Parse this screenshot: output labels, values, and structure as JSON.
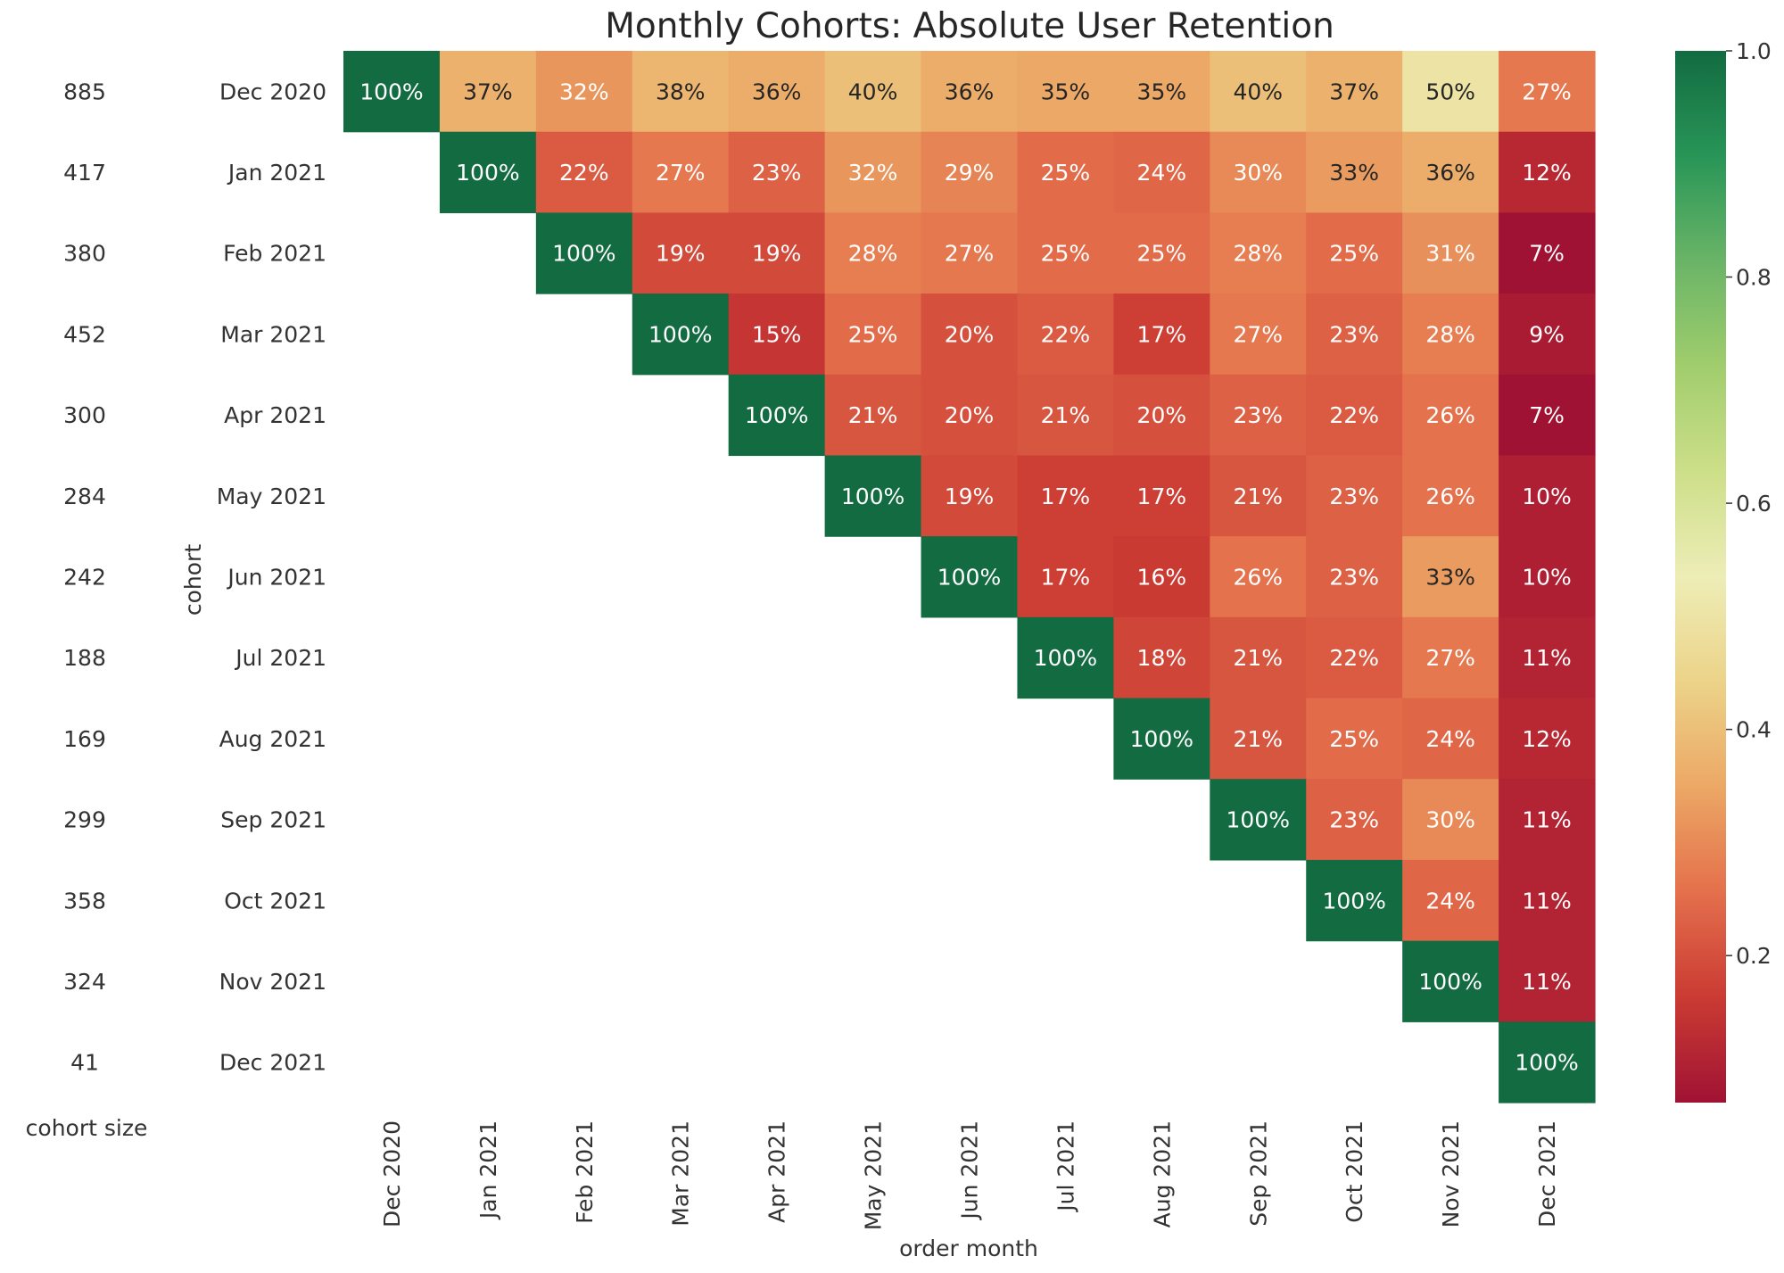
{
  "chart_data": {
    "type": "heatmap",
    "title": "Monthly Cohorts: Absolute User Retention",
    "xlabel": "order month",
    "ylabel": "cohort",
    "side_label": "cohort size",
    "colormap": "RdYlGn",
    "color_range": [
      0.07,
      1.0
    ],
    "colorbar_ticks": [
      "0.2",
      "0.4",
      "0.6",
      "0.8",
      "1.0"
    ],
    "columns": [
      "Dec 2020",
      "Jan 2021",
      "Feb 2021",
      "Mar 2021",
      "Apr 2021",
      "May 2021",
      "Jun 2021",
      "Jul 2021",
      "Aug 2021",
      "Sep 2021",
      "Oct 2021",
      "Nov 2021",
      "Dec 2021"
    ],
    "rows": [
      "Dec 2020",
      "Jan 2021",
      "Feb 2021",
      "Mar 2021",
      "Apr 2021",
      "May 2021",
      "Jun 2021",
      "Jul 2021",
      "Aug 2021",
      "Sep 2021",
      "Oct 2021",
      "Nov 2021",
      "Dec 2021"
    ],
    "cohort_sizes": [
      "885",
      "417",
      "380",
      "452",
      "300",
      "284",
      "242",
      "188",
      "169",
      "299",
      "358",
      "324",
      "41"
    ],
    "values": [
      [
        100,
        37,
        32,
        38,
        36,
        40,
        36,
        35,
        35,
        40,
        37,
        50,
        27
      ],
      [
        null,
        100,
        22,
        27,
        23,
        32,
        29,
        25,
        24,
        30,
        33,
        36,
        12
      ],
      [
        null,
        null,
        100,
        19,
        19,
        28,
        27,
        25,
        25,
        28,
        25,
        31,
        7
      ],
      [
        null,
        null,
        null,
        100,
        15,
        25,
        20,
        22,
        17,
        27,
        23,
        28,
        9
      ],
      [
        null,
        null,
        null,
        null,
        100,
        21,
        20,
        21,
        20,
        23,
        22,
        26,
        7
      ],
      [
        null,
        null,
        null,
        null,
        null,
        100,
        19,
        17,
        17,
        21,
        23,
        26,
        10
      ],
      [
        null,
        null,
        null,
        null,
        null,
        null,
        100,
        17,
        16,
        26,
        23,
        33,
        10
      ],
      [
        null,
        null,
        null,
        null,
        null,
        null,
        null,
        100,
        18,
        21,
        22,
        27,
        11
      ],
      [
        null,
        null,
        null,
        null,
        null,
        null,
        null,
        null,
        100,
        21,
        25,
        24,
        12
      ],
      [
        null,
        null,
        null,
        null,
        null,
        null,
        null,
        null,
        null,
        100,
        23,
        30,
        11
      ],
      [
        null,
        null,
        null,
        null,
        null,
        null,
        null,
        null,
        null,
        null,
        100,
        24,
        11
      ],
      [
        null,
        null,
        null,
        null,
        null,
        null,
        null,
        null,
        null,
        null,
        null,
        100,
        11
      ],
      [
        null,
        null,
        null,
        null,
        null,
        null,
        null,
        null,
        null,
        null,
        null,
        null,
        100
      ]
    ],
    "value_format": "percent"
  }
}
